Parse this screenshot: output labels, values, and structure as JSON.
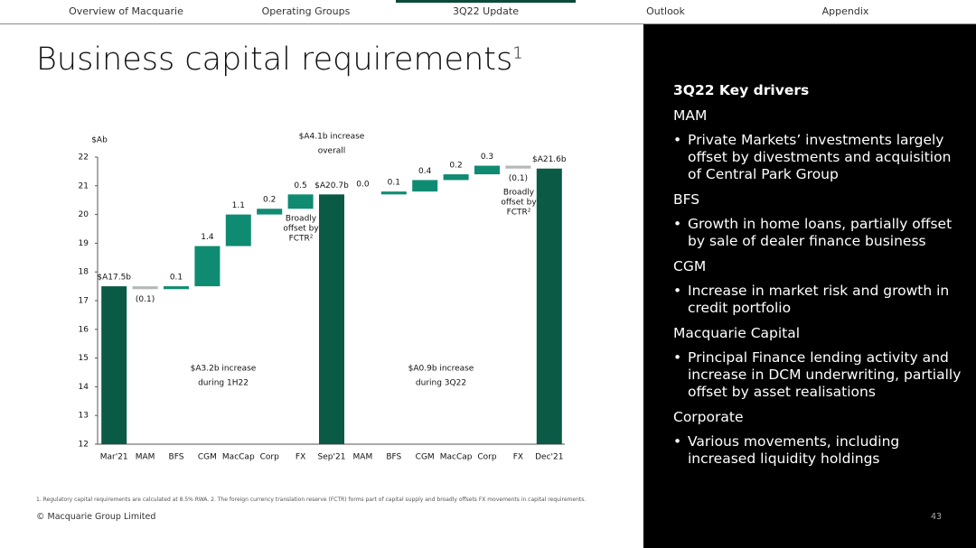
{
  "nav": {
    "items": [
      "Overview of Macquarie",
      "Operating Groups",
      "3Q22 Update",
      "Outlook",
      "Appendix"
    ],
    "active": 2
  },
  "header": {
    "title": "Business capital requirements",
    "title_note": "1"
  },
  "chart_data": {
    "type": "waterfall",
    "y_label": "$Ab",
    "categories": [
      "Mar'21",
      "MAM",
      "BFS",
      "CGM",
      "MacCap",
      "Corp",
      "FX",
      "Sep'21",
      "MAM",
      "BFS",
      "CGM",
      "MacCap",
      "Corp",
      "FX",
      "Dec'21"
    ],
    "values": [
      17.5,
      -0.1,
      0.1,
      1.4,
      1.1,
      0.2,
      0.5,
      20.7,
      0.0,
      0.1,
      0.4,
      0.2,
      0.3,
      -0.1,
      21.6
    ],
    "value_labels": [
      "$A17.5b",
      "(0.1)",
      "0.1",
      "1.4",
      "1.1",
      "0.2",
      "0.5",
      "$A20.7b",
      "0.0",
      "0.1",
      "0.4",
      "0.2",
      "0.3",
      "(0.1)",
      "$A21.6b"
    ],
    "bar_types": [
      "total",
      "delta",
      "delta",
      "delta",
      "delta",
      "delta",
      "delta",
      "total",
      "delta",
      "delta",
      "delta",
      "delta",
      "delta",
      "delta",
      "total"
    ],
    "colors": {
      "total": "#0b5a45",
      "increase": "#0f8b72",
      "decrease": "#b4b9b7"
    },
    "ylim": [
      12,
      22
    ],
    "yticks": [
      12,
      13,
      14,
      15,
      16,
      17,
      18,
      19,
      20,
      21,
      22
    ],
    "annotations": [
      {
        "lines": [
          "$A4.1b increase",
          "overall"
        ]
      },
      {
        "lines": [
          "$A3.2b increase",
          "during 1H22"
        ]
      },
      {
        "lines": [
          "$A0.9b increase",
          "during 3Q22"
        ]
      },
      {
        "lines": [
          "Broadly",
          "offset by",
          "FCTR²"
        ]
      },
      {
        "lines": [
          "Broadly",
          "offset by",
          "FCTR²"
        ]
      }
    ]
  },
  "panel": {
    "heading": "3Q22 Key drivers",
    "sections": [
      {
        "heading": "MAM",
        "bullets": [
          "Private Markets’ investments largely offset by divestments and acquisition of Central Park Group"
        ]
      },
      {
        "heading": "BFS",
        "bullets": [
          "Growth in home loans, partially offset by sale of dealer finance business"
        ]
      },
      {
        "heading": "CGM",
        "bullets": [
          "Increase in market risk and growth in credit portfolio"
        ]
      },
      {
        "heading": "Macquarie Capital",
        "bullets": [
          "Principal Finance lending activity and increase in DCM underwriting, partially offset by asset realisations"
        ]
      },
      {
        "heading": "Corporate",
        "bullets": [
          "Various movements, including increased liquidity holdings"
        ]
      }
    ]
  },
  "footnote": "1. Regulatory capital requirements are calculated at 8.5% RWA. 2. The foreign currency translation reserve (FCTR) forms part of capital supply and broadly offsets FX movements in capital requirements.",
  "footer": {
    "copyright": "© Macquarie Group Limited",
    "page": "43"
  }
}
